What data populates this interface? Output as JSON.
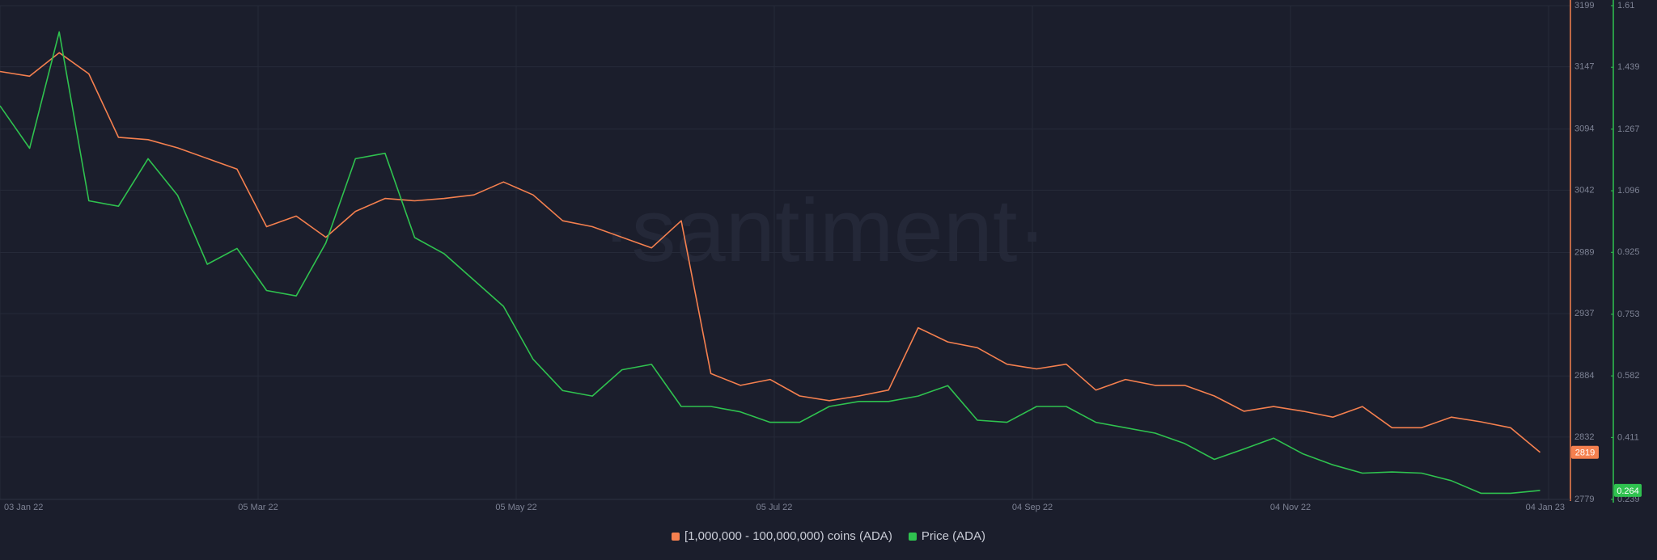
{
  "chart_data": {
    "type": "line",
    "watermark": "·santiment·",
    "x": [
      "2022-01-03",
      "2022-01-10",
      "2022-01-17",
      "2022-01-24",
      "2022-01-31",
      "2022-02-07",
      "2022-02-14",
      "2022-02-21",
      "2022-02-28",
      "2022-03-07",
      "2022-03-14",
      "2022-03-21",
      "2022-03-28",
      "2022-04-04",
      "2022-04-11",
      "2022-04-18",
      "2022-04-25",
      "2022-05-02",
      "2022-05-09",
      "2022-05-16",
      "2022-05-23",
      "2022-05-30",
      "2022-06-06",
      "2022-06-13",
      "2022-06-20",
      "2022-06-27",
      "2022-07-04",
      "2022-07-11",
      "2022-07-18",
      "2022-07-25",
      "2022-08-01",
      "2022-08-08",
      "2022-08-15",
      "2022-08-22",
      "2022-08-29",
      "2022-09-05",
      "2022-09-12",
      "2022-09-19",
      "2022-09-26",
      "2022-10-03",
      "2022-10-10",
      "2022-10-17",
      "2022-10-24",
      "2022-10-31",
      "2022-11-07",
      "2022-11-14",
      "2022-11-21",
      "2022-11-28",
      "2022-12-05",
      "2022-12-12",
      "2022-12-19",
      "2022-12-26",
      "2023-01-02"
    ],
    "xlim": [
      "2022-01-03",
      "2023-01-04"
    ],
    "xticks": [
      {
        "value": "2022-01-03",
        "label": "03 Jan 22"
      },
      {
        "value": "2022-03-05",
        "label": "05 Mar 22"
      },
      {
        "value": "2022-05-05",
        "label": "05 May 22"
      },
      {
        "value": "2022-07-05",
        "label": "05 Jul 22"
      },
      {
        "value": "2022-09-04",
        "label": "04 Sep 22"
      },
      {
        "value": "2022-11-04",
        "label": "04 Nov 22"
      },
      {
        "value": "2023-01-04",
        "label": "04 Jan 23"
      }
    ],
    "ylim": [
      2779,
      3199
    ],
    "yticks": [
      2779,
      2832,
      2884,
      2937,
      2989,
      3042,
      3094,
      3147,
      3199
    ],
    "y2lim": [
      0.239,
      1.61
    ],
    "y2ticks": [
      0.239,
      0.411,
      0.582,
      0.753,
      0.925,
      1.096,
      1.267,
      1.439,
      1.61
    ],
    "grid": true,
    "legend": "bottom",
    "series": [
      {
        "name": "[1,000,000 - 100,000,000) coins (ADA)",
        "color": "#f5804f",
        "values": [
          3143,
          3139,
          3159,
          3141,
          3087,
          3085,
          3078,
          3069,
          3060,
          3011,
          3020,
          3002,
          3024,
          3035,
          3033,
          3035,
          3038,
          3049,
          3038,
          3016,
          3011,
          3002,
          2993,
          3016,
          2886,
          2876,
          2881,
          2867,
          2863,
          2867,
          2872,
          2925,
          2913,
          2908,
          2894,
          2890,
          2894,
          2872,
          2881,
          2876,
          2876,
          2867,
          2854,
          2858,
          2854,
          2849,
          2858,
          2840,
          2840,
          2849,
          2845,
          2840,
          2819
        ]
      },
      {
        "name": "Price (ADA)",
        "color": "#2fc24f",
        "axis": "y2",
        "values": [
          1.332,
          1.214,
          1.537,
          1.068,
          1.053,
          1.185,
          1.083,
          0.892,
          0.936,
          0.819,
          0.804,
          0.951,
          1.185,
          1.2,
          0.966,
          0.921,
          0.848,
          0.775,
          0.628,
          0.541,
          0.526,
          0.599,
          0.614,
          0.497,
          0.497,
          0.482,
          0.453,
          0.453,
          0.497,
          0.511,
          0.511,
          0.526,
          0.555,
          0.459,
          0.453,
          0.497,
          0.497,
          0.453,
          0.438,
          0.423,
          0.394,
          0.35,
          0.379,
          0.409,
          0.365,
          0.335,
          0.312,
          0.315,
          0.312,
          0.291,
          0.256,
          0.256,
          0.264
        ]
      }
    ]
  }
}
